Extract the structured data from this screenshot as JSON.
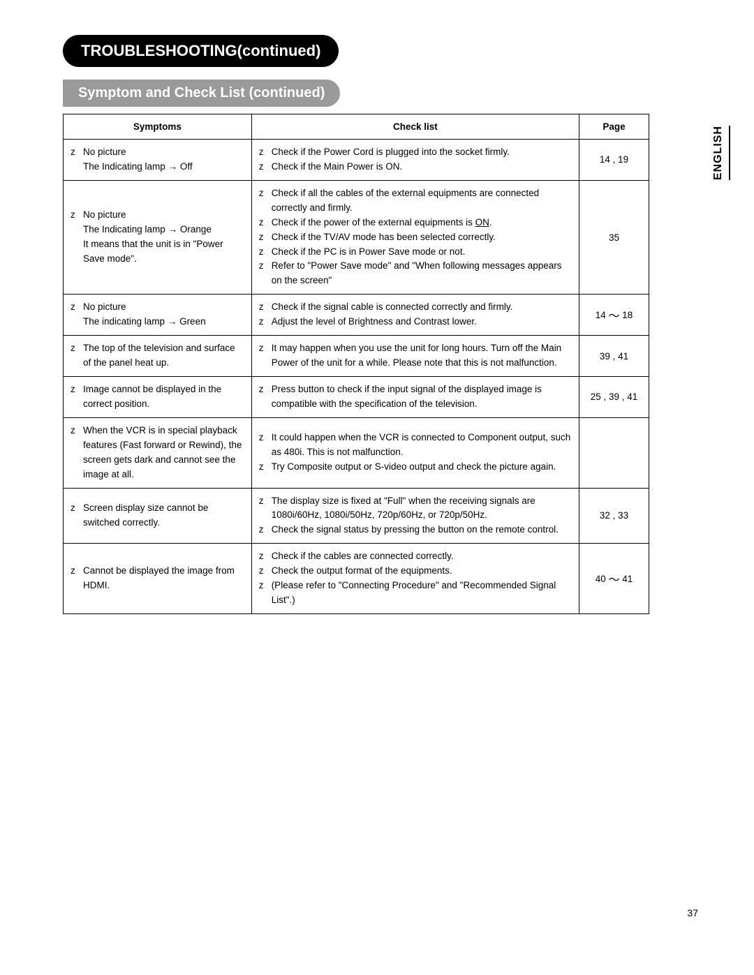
{
  "section_title": "TROUBLESHOOTING(continued)",
  "sub_title": "Symptom and Check List (continued)",
  "side_label": "ENGLISH",
  "page_number": "37",
  "headers": {
    "symptoms": "Symptoms",
    "checklist": "Check list",
    "page": "Page"
  },
  "rows": [
    {
      "symptoms": [
        "No picture"
      ],
      "symptom_sub": "The Indicating lamp → Off",
      "checks": [
        "Check if the Power Cord is plugged into the socket firmly.",
        "Check if the Main Power is ON."
      ],
      "page": "14 ,  19"
    },
    {
      "symptoms": [
        "No picture"
      ],
      "symptom_sub": "The Indicating lamp → Orange",
      "symptom_sub2": "It means that the unit is in \"Power Save mode\".",
      "checks": [
        "Check if all the cables of the external equipments are connected correctly and firmly.",
        "Check if the power of the external equipments is ON.",
        "Check if the TV/AV mode has been selected correctly.",
        "Check if the PC is in Power Save mode or not.",
        "Refer to \"Power Save mode\" and \"When following messages appears on the screen\""
      ],
      "underline_on": true,
      "page": "35"
    },
    {
      "symptoms": [
        "No picture"
      ],
      "symptom_sub": "The indicating lamp → Green",
      "checks": [
        "Check if the signal cable is connected correctly and firmly.",
        "Adjust the level of Brightness and Contrast lower."
      ],
      "page": "14 ～ 18"
    },
    {
      "symptoms": [
        "The top of the television and surface of the panel heat up."
      ],
      "checks": [
        "It may happen when you use the unit for long hours. Turn off the Main Power of the unit for a while. Please note that this is not malfunction."
      ],
      "page": "39 ,  41"
    },
    {
      "symptoms": [
        "Image cannot be displayed in the correct position."
      ],
      "checks": [
        "Press            button to check if the input signal of the displayed image is compatible with the specification of the television."
      ],
      "page": "25 ,  39 , 41"
    },
    {
      "symptoms": [
        "When the VCR is in special playback features (Fast forward or Rewind), the screen gets dark and cannot see the image at all."
      ],
      "checks": [
        "It could happen when the VCR is connected to Component output, such as 480i. This is not malfunction.",
        "Try Composite output or S-video output and check the picture again."
      ],
      "page": ""
    },
    {
      "symptoms": [
        "Screen display size cannot be switched correctly."
      ],
      "checks": [
        "The display size is fixed at \"Full\" when the receiving signals are 1080i/60Hz, 1080i/50Hz, 720p/60Hz, or 720p/50Hz.",
        "Check the signal status by pressing the             button on the remote control."
      ],
      "page": "32 ,  33"
    },
    {
      "symptoms": [
        "Cannot be displayed the image from HDMI."
      ],
      "checks": [
        "Check if the cables are connected correctly.",
        "Check the output format of the equipments.",
        "(Please refer to \"Connecting Procedure\" and \"Recommended Signal List\".)"
      ],
      "page": "40 ～ 41"
    }
  ]
}
